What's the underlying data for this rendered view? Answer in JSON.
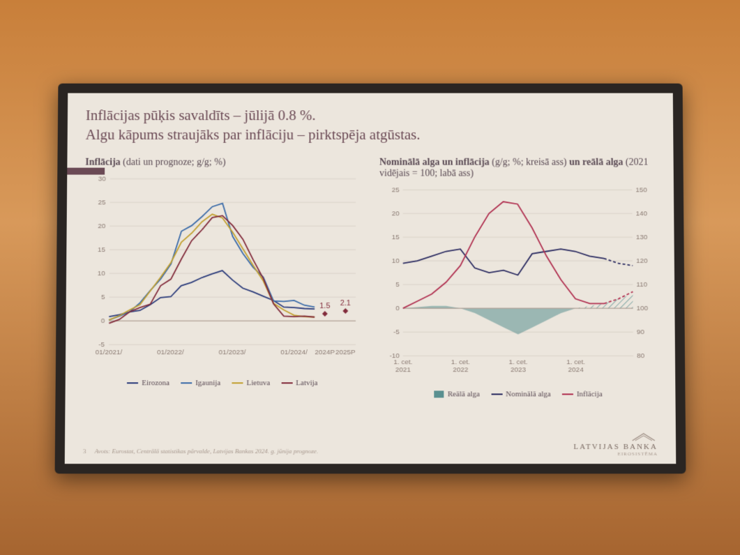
{
  "slide": {
    "title_line1": "Inflācijas pūķis savaldīts – jūlijā 0.8 %.",
    "title_line2": "Algu kāpums straujāks par inflāciju – pirktspēja atgūstas.",
    "page_number": "3",
    "source": "Avots: Eurostat, Centrālā statistikas pārvalde, Latvijas Bankas 2024. g. jūnija prognoze.",
    "brand": "LATVIJAS BANKA",
    "brand_sub": "EIROSISTĒMA",
    "title_color": "#6b4a55",
    "bg_color": "#ece6dd"
  },
  "chart1": {
    "type": "line",
    "title_bold": "Inflācija",
    "title_rest": " (dati un prognoze; g/g; %)",
    "ylim": [
      -5,
      30
    ],
    "ytick_step": 5,
    "y_ticks": [
      -5,
      0,
      5,
      10,
      15,
      20,
      25,
      30
    ],
    "x_labels": [
      "01/2021/",
      "01/2022/",
      "01/2023/",
      "01/2024/",
      "2024P",
      "2025P"
    ],
    "x_positions": [
      0,
      12,
      24,
      36,
      42,
      46
    ],
    "x_max": 48,
    "grid_color": "#c8beb4",
    "series": [
      {
        "name": "Eirozona",
        "color": "#2a3a7a",
        "dash": "",
        "data": [
          [
            0,
            0.9
          ],
          [
            2,
            1.3
          ],
          [
            4,
            1.9
          ],
          [
            6,
            2.2
          ],
          [
            8,
            3.4
          ],
          [
            10,
            4.9
          ],
          [
            12,
            5.1
          ],
          [
            14,
            7.4
          ],
          [
            16,
            8.1
          ],
          [
            18,
            9.1
          ],
          [
            20,
            9.9
          ],
          [
            22,
            10.6
          ],
          [
            24,
            8.6
          ],
          [
            26,
            6.9
          ],
          [
            28,
            6.1
          ],
          [
            30,
            5.2
          ],
          [
            32,
            4.3
          ],
          [
            34,
            2.9
          ],
          [
            36,
            2.8
          ],
          [
            38,
            2.6
          ],
          [
            40,
            2.5
          ]
        ]
      },
      {
        "name": "Igaunija",
        "color": "#3a6aa8",
        "dash": "",
        "data": [
          [
            0,
            0.2
          ],
          [
            2,
            1.0
          ],
          [
            4,
            1.9
          ],
          [
            6,
            3.8
          ],
          [
            8,
            6.4
          ],
          [
            10,
            8.8
          ],
          [
            12,
            12.0
          ],
          [
            14,
            18.9
          ],
          [
            16,
            20.1
          ],
          [
            18,
            22.0
          ],
          [
            20,
            24.1
          ],
          [
            22,
            24.8
          ],
          [
            24,
            17.8
          ],
          [
            26,
            14.2
          ],
          [
            28,
            11.3
          ],
          [
            30,
            9.2
          ],
          [
            32,
            4.2
          ],
          [
            34,
            4.1
          ],
          [
            36,
            4.3
          ],
          [
            38,
            3.3
          ],
          [
            40,
            2.9
          ]
        ]
      },
      {
        "name": "Lietuva",
        "color": "#c2a030",
        "dash": "",
        "data": [
          [
            0,
            0.2
          ],
          [
            2,
            1.1
          ],
          [
            4,
            2.3
          ],
          [
            6,
            3.4
          ],
          [
            8,
            6.3
          ],
          [
            10,
            9.2
          ],
          [
            12,
            12.3
          ],
          [
            14,
            16.6
          ],
          [
            16,
            18.5
          ],
          [
            18,
            20.9
          ],
          [
            20,
            22.5
          ],
          [
            22,
            21.7
          ],
          [
            24,
            18.7
          ],
          [
            26,
            15.2
          ],
          [
            28,
            11.7
          ],
          [
            30,
            8.4
          ],
          [
            32,
            3.7
          ],
          [
            34,
            2.3
          ],
          [
            36,
            1.2
          ],
          [
            38,
            0.9
          ],
          [
            40,
            0.8
          ]
        ]
      },
      {
        "name": "Latvija",
        "color": "#812a3a",
        "dash": "",
        "data": [
          [
            0,
            -0.5
          ],
          [
            2,
            0.3
          ],
          [
            4,
            1.9
          ],
          [
            6,
            2.8
          ],
          [
            8,
            3.5
          ],
          [
            10,
            7.4
          ],
          [
            12,
            8.8
          ],
          [
            14,
            13.0
          ],
          [
            16,
            16.9
          ],
          [
            18,
            19.2
          ],
          [
            20,
            21.8
          ],
          [
            22,
            22.2
          ],
          [
            24,
            20.1
          ],
          [
            26,
            17.2
          ],
          [
            28,
            12.9
          ],
          [
            30,
            8.9
          ],
          [
            32,
            3.6
          ],
          [
            34,
            1.0
          ],
          [
            36,
            0.9
          ],
          [
            38,
            1.0
          ],
          [
            40,
            0.8
          ]
        ]
      }
    ],
    "forecast_points": [
      {
        "x": 42,
        "y": 1.5,
        "label": "1.5"
      },
      {
        "x": 46,
        "y": 2.1,
        "label": "2.1"
      }
    ],
    "forecast_color": "#812a3a",
    "legend": [
      "Eirozona",
      "Igaunija",
      "Lietuva",
      "Latvija"
    ]
  },
  "chart2": {
    "type": "line+area",
    "title_html_bold1": "Nominālā alga un inflācija",
    "title_rest1": " (g/g; %; kreisā ass) ",
    "title_bold2": "un reālā alga",
    "title_rest2": " (2021 vidējais = 100; labā ass)",
    "ylim_left": [
      -10,
      25
    ],
    "ytick_left_step": 5,
    "y_ticks_left": [
      -10,
      -5,
      0,
      5,
      10,
      15,
      20,
      25
    ],
    "ylim_right": [
      80,
      150
    ],
    "ytick_right_step": 10,
    "y_ticks_right": [
      80,
      90,
      100,
      110,
      120,
      130,
      140,
      150
    ],
    "x_labels": [
      "1. cet.\n2021",
      "1. cet.\n2022",
      "1. cet.\n2023",
      "1. cet.\n2024"
    ],
    "x_positions": [
      0,
      4,
      8,
      12
    ],
    "x_max": 16,
    "area": {
      "name": "Reālā alga",
      "color": "#5a9090",
      "right_axis": true,
      "data": [
        [
          0,
          100
        ],
        [
          1,
          100.5
        ],
        [
          2,
          101
        ],
        [
          3,
          101
        ],
        [
          4,
          100
        ],
        [
          5,
          98
        ],
        [
          6,
          95
        ],
        [
          7,
          92
        ],
        [
          8,
          89
        ],
        [
          9,
          92
        ],
        [
          10,
          95
        ],
        [
          11,
          98
        ],
        [
          12,
          100
        ],
        [
          13,
          101
        ],
        [
          14,
          102
        ],
        [
          15,
          104
        ],
        [
          16,
          106
        ]
      ],
      "forecast_start": 12
    },
    "lines": [
      {
        "name": "Nominālā alga",
        "color": "#2a2a60",
        "dash": "",
        "data": [
          [
            0,
            9.5
          ],
          [
            1,
            10.0
          ],
          [
            2,
            11.0
          ],
          [
            3,
            12.0
          ],
          [
            4,
            12.5
          ],
          [
            5,
            8.5
          ],
          [
            6,
            7.5
          ],
          [
            7,
            8.0
          ],
          [
            8,
            7.0
          ],
          [
            9,
            11.5
          ],
          [
            10,
            12.0
          ],
          [
            11,
            12.5
          ],
          [
            12,
            12.0
          ],
          [
            13,
            11.0
          ],
          [
            14,
            10.5
          ]
        ],
        "forecast": [
          [
            14,
            10.5
          ],
          [
            15,
            9.5
          ],
          [
            16,
            9.0
          ]
        ]
      },
      {
        "name": "Inflācija",
        "color": "#b03050",
        "dash": "",
        "data": [
          [
            0,
            0.0
          ],
          [
            1,
            1.5
          ],
          [
            2,
            3.0
          ],
          [
            3,
            5.5
          ],
          [
            4,
            9.0
          ],
          [
            5,
            15.0
          ],
          [
            6,
            20.0
          ],
          [
            7,
            22.5
          ],
          [
            8,
            22.0
          ],
          [
            9,
            17.0
          ],
          [
            10,
            11.0
          ],
          [
            11,
            6.0
          ],
          [
            12,
            2.0
          ],
          [
            13,
            1.0
          ],
          [
            14,
            1.0
          ]
        ],
        "forecast": [
          [
            14,
            1.0
          ],
          [
            15,
            2.0
          ],
          [
            16,
            3.5
          ]
        ]
      }
    ],
    "legend": [
      {
        "name": "Reālā alga",
        "color": "#5a9090",
        "type": "box"
      },
      {
        "name": "Nominālā alga",
        "color": "#2a2a60",
        "type": "line"
      },
      {
        "name": "Inflācija",
        "color": "#b03050",
        "type": "line"
      }
    ]
  }
}
